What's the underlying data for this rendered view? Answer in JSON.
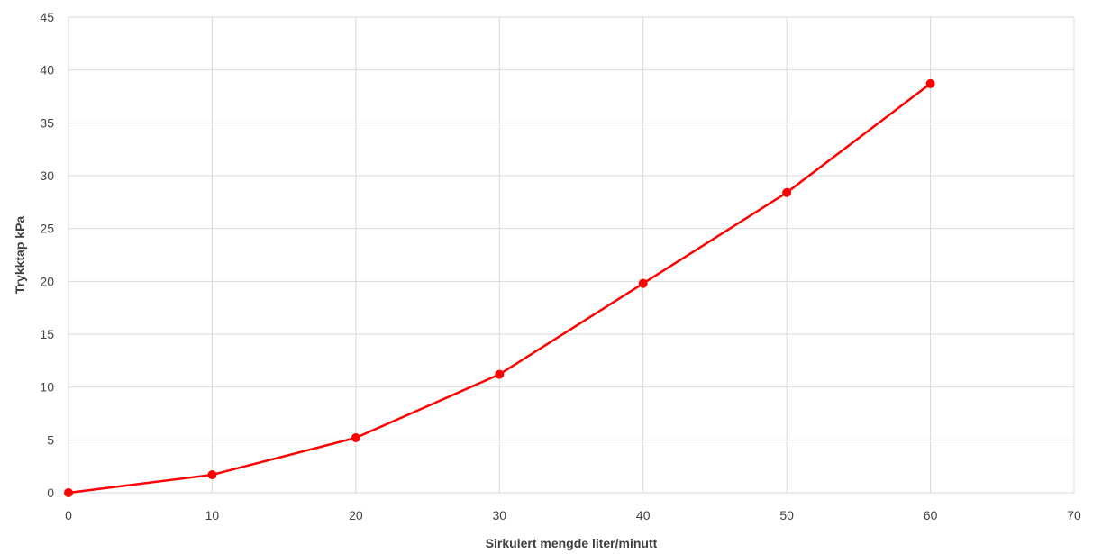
{
  "chart_data": {
    "type": "line",
    "title": "",
    "xlabel": "Sirkulert mengde liter/minutt",
    "ylabel": "Trykktap kPa",
    "xlim": [
      0,
      70
    ],
    "ylim": [
      0,
      45
    ],
    "xticks": [
      0,
      10,
      20,
      30,
      40,
      50,
      60,
      70
    ],
    "yticks": [
      0,
      5,
      10,
      15,
      20,
      25,
      30,
      35,
      40,
      45
    ],
    "grid": true,
    "legend": "none",
    "series": [
      {
        "color": "#ff0000",
        "x": [
          0,
          10,
          20,
          30,
          40,
          50,
          60
        ],
        "y": [
          0,
          1.7,
          5.2,
          11.2,
          19.8,
          28.4,
          38.7
        ]
      }
    ]
  }
}
